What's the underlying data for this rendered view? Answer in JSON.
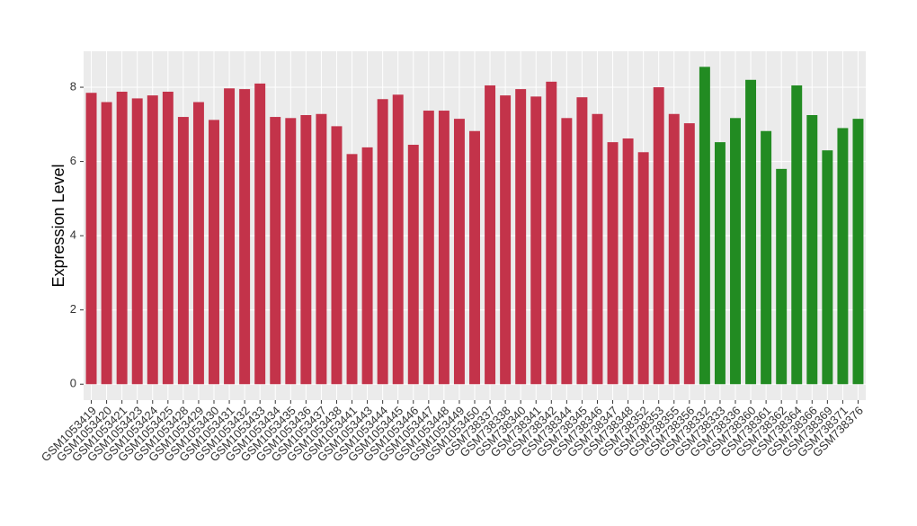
{
  "chart_data": {
    "type": "bar",
    "ylabel": "Expression Level",
    "categories": [
      "GSM1053419",
      "GSM1053420",
      "GSM1053421",
      "GSM1053423",
      "GSM1053424",
      "GSM1053425",
      "GSM1053428",
      "GSM1053429",
      "GSM1053430",
      "GSM1053431",
      "GSM1053432",
      "GSM1053433",
      "GSM1053434",
      "GSM1053435",
      "GSM1053436",
      "GSM1053437",
      "GSM1053438",
      "GSM1053441",
      "GSM1053443",
      "GSM1053444",
      "GSM1053445",
      "GSM1053446",
      "GSM1053447",
      "GSM1053448",
      "GSM1053449",
      "GSM1053450",
      "GSM738337",
      "GSM738338",
      "GSM738340",
      "GSM738341",
      "GSM738342",
      "GSM738344",
      "GSM738345",
      "GSM738346",
      "GSM738347",
      "GSM738348",
      "GSM738352",
      "GSM738353",
      "GSM738355",
      "GSM738356",
      "GSM738332",
      "GSM738333",
      "GSM738336",
      "GSM738360",
      "GSM738361",
      "GSM738362",
      "GSM738364",
      "GSM738366",
      "GSM738369",
      "GSM738371",
      "GSM738376"
    ],
    "values": [
      7.85,
      7.6,
      7.88,
      7.7,
      7.78,
      7.88,
      7.2,
      7.6,
      7.12,
      7.97,
      7.95,
      8.1,
      7.2,
      7.17,
      7.25,
      7.28,
      6.95,
      6.2,
      6.38,
      7.68,
      7.8,
      6.45,
      7.37,
      7.37,
      7.15,
      6.82,
      8.05,
      7.78,
      7.95,
      7.75,
      8.15,
      7.17,
      7.73,
      7.28,
      6.52,
      6.62,
      6.25,
      8.0,
      7.28,
      7.03,
      8.55,
      6.52,
      7.17,
      8.2,
      6.82,
      5.8,
      8.05,
      7.25,
      6.3,
      6.9,
      7.15
    ],
    "colors": [
      "#c3334a",
      "#c3334a",
      "#c3334a",
      "#c3334a",
      "#c3334a",
      "#c3334a",
      "#c3334a",
      "#c3334a",
      "#c3334a",
      "#c3334a",
      "#c3334a",
      "#c3334a",
      "#c3334a",
      "#c3334a",
      "#c3334a",
      "#c3334a",
      "#c3334a",
      "#c3334a",
      "#c3334a",
      "#c3334a",
      "#c3334a",
      "#c3334a",
      "#c3334a",
      "#c3334a",
      "#c3334a",
      "#c3334a",
      "#c3334a",
      "#c3334a",
      "#c3334a",
      "#c3334a",
      "#c3334a",
      "#c3334a",
      "#c3334a",
      "#c3334a",
      "#c3334a",
      "#c3334a",
      "#c3334a",
      "#c3334a",
      "#c3334a",
      "#c3334a",
      "#228b22",
      "#228b22",
      "#228b22",
      "#228b22",
      "#228b22",
      "#228b22",
      "#228b22",
      "#228b22",
      "#228b22",
      "#228b22",
      "#228b22"
    ],
    "ylim": [
      -0.43,
      8.97
    ],
    "yticks": [
      0,
      2,
      4,
      6,
      8
    ],
    "grid": true
  }
}
